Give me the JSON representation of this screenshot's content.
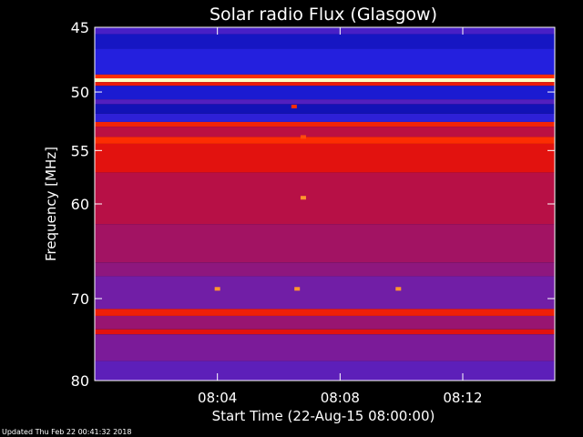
{
  "chart_data": {
    "type": "heatmap",
    "title": "Solar radio Flux (Glasgow)",
    "xlabel": "Start Time (22-Aug-15 08:00:00)",
    "ylabel": "Frequency [MHz]",
    "x_unit": "minutes after 08:00:00",
    "xlim": [
      0,
      15
    ],
    "x_ticks": [
      {
        "value": 4,
        "label": "08:04"
      },
      {
        "value": 8,
        "label": "08:08"
      },
      {
        "value": 12,
        "label": "08:12"
      }
    ],
    "ylim": [
      45,
      80
    ],
    "y_reversed": true,
    "y_scale": "log",
    "y_ticks": [
      {
        "value": 45,
        "label": "45"
      },
      {
        "value": 50,
        "label": "50"
      },
      {
        "value": 55,
        "label": "55"
      },
      {
        "value": 60,
        "label": "60"
      },
      {
        "value": 70,
        "label": "70"
      },
      {
        "value": 80,
        "label": "80"
      }
    ],
    "colormap": [
      "#000080",
      "#2020e0",
      "#6a1fb0",
      "#b01050",
      "#e01010",
      "#ff3000",
      "#ff9a30",
      "#ffffc0"
    ],
    "bands": [
      {
        "f0": 45.0,
        "f1": 45.5,
        "level": 0.22
      },
      {
        "f0": 45.5,
        "f1": 46.6,
        "level": 0.1
      },
      {
        "f0": 46.6,
        "f1": 48.6,
        "level": 0.15
      },
      {
        "f0": 48.6,
        "f1": 48.9,
        "level": 0.7
      },
      {
        "f0": 48.9,
        "f1": 49.2,
        "level": 1.0
      },
      {
        "f0": 49.2,
        "f1": 49.5,
        "level": 0.62
      },
      {
        "f0": 49.5,
        "f1": 50.6,
        "level": 0.12
      },
      {
        "f0": 50.6,
        "f1": 51.0,
        "level": 0.24
      },
      {
        "f0": 51.0,
        "f1": 51.8,
        "level": 0.08
      },
      {
        "f0": 51.8,
        "f1": 52.5,
        "level": 0.17
      },
      {
        "f0": 52.5,
        "f1": 52.9,
        "level": 0.66
      },
      {
        "f0": 52.9,
        "f1": 53.8,
        "level": 0.46
      },
      {
        "f0": 53.8,
        "f1": 54.4,
        "level": 0.7
      },
      {
        "f0": 54.4,
        "f1": 57.0,
        "level": 0.58
      },
      {
        "f0": 57.0,
        "f1": 62.0,
        "level": 0.45
      },
      {
        "f0": 62.0,
        "f1": 66.0,
        "level": 0.4
      },
      {
        "f0": 66.0,
        "f1": 67.5,
        "level": 0.36
      },
      {
        "f0": 67.5,
        "f1": 71.2,
        "level": 0.3
      },
      {
        "f0": 71.2,
        "f1": 72.0,
        "level": 0.64
      },
      {
        "f0": 72.0,
        "f1": 73.6,
        "level": 0.38
      },
      {
        "f0": 73.6,
        "f1": 74.2,
        "level": 0.58
      },
      {
        "f0": 74.2,
        "f1": 77.5,
        "level": 0.32
      },
      {
        "f0": 77.5,
        "f1": 80.0,
        "level": 0.26
      }
    ],
    "bursts": [
      {
        "t": 6.5,
        "f": 51.2,
        "level": 0.7
      },
      {
        "t": 6.8,
        "f": 53.8,
        "level": 0.75
      },
      {
        "t": 6.8,
        "f": 59.4,
        "level": 0.85
      },
      {
        "t": 4.0,
        "f": 68.9,
        "level": 0.85
      },
      {
        "t": 6.6,
        "f": 68.9,
        "level": 0.85
      },
      {
        "t": 9.9,
        "f": 68.9,
        "level": 0.85
      }
    ]
  },
  "footer": "Updated Thu Feb 22 00:41:32 2018"
}
